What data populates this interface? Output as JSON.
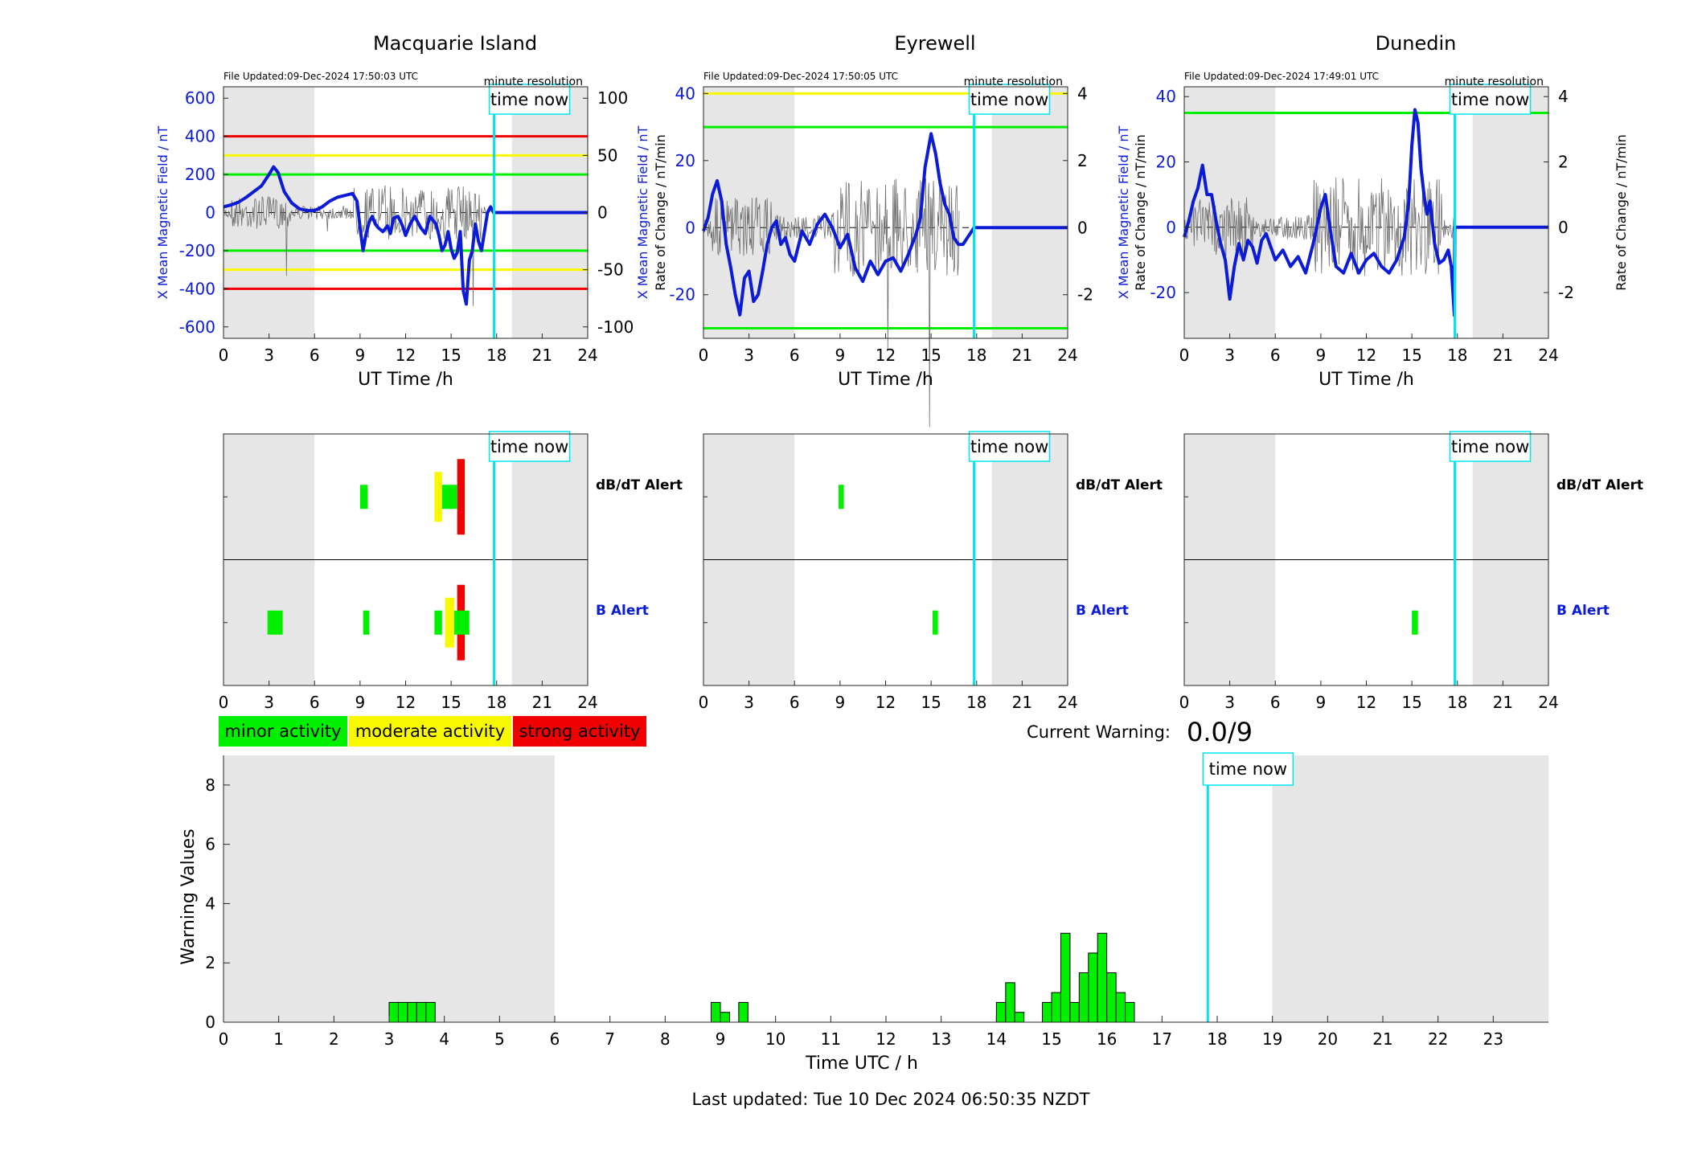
{
  "colors": {
    "field_line": "#0b1bd6",
    "roc_line": "#6e6e6e",
    "night_shade": "#e6e6e6",
    "time_now": "#00e5ee",
    "minor": "#00f000",
    "moderate": "#f8f800",
    "strong": "#f00000",
    "bar_fill": "#00f000"
  },
  "common": {
    "time_now_label": "time now",
    "minute_resolution": "minute resolution",
    "x_label": "UT Time /h",
    "x_ticks": [
      "0",
      "3",
      "6",
      "9",
      "12",
      "15",
      "18",
      "21",
      "24"
    ],
    "roc_label": "Rate of Change / nT/min",
    "field_label": "X Mean Magnetic Field / nT",
    "dbdt_alert": "dB/dT Alert",
    "b_alert": "B Alert",
    "time_now_hour": 17.83,
    "night_shades": [
      [
        0,
        6
      ],
      [
        19,
        24
      ]
    ]
  },
  "legend": {
    "minor": "minor activity",
    "moderate": "moderate activity",
    "strong": "strong activity"
  },
  "current_warning": {
    "label": "Current Warning:",
    "value": "0.0/9"
  },
  "last_updated": "Last updated: Tue 10 Dec 2024 06:50:35 NZDT",
  "chart_data": [
    {
      "type": "line",
      "title": "Macquarie Island",
      "file_updated": "File Updated:09-Dec-2024 17:50:03 UTC",
      "xlabel": "UT Time /h",
      "ylabel": "X Mean Magnetic Field / nT",
      "ylabel_right": "Rate of Change / nT/min",
      "xlim": [
        0,
        24
      ],
      "ylim": [
        -660,
        660
      ],
      "yticks": [
        -600,
        -400,
        -200,
        0,
        200,
        400,
        600
      ],
      "ylim_right": [
        -110,
        110
      ],
      "yticks_right": [
        -100,
        -50,
        0,
        50,
        100
      ],
      "thresholds": [
        {
          "value": 400,
          "color": "#f00000"
        },
        {
          "value": -400,
          "color": "#f00000"
        },
        {
          "value": 300,
          "color": "#f8f800"
        },
        {
          "value": -300,
          "color": "#f8f800"
        },
        {
          "value": 200,
          "color": "#00f000"
        },
        {
          "value": -200,
          "color": "#00f000"
        }
      ],
      "series": [
        {
          "x": [
            0,
            0.5,
            1,
            1.5,
            2,
            2.5,
            3,
            3.3,
            3.6,
            4,
            4.5,
            5,
            5.5,
            6,
            6.5,
            7,
            7.5,
            8,
            8.5,
            8.8,
            9,
            9.2,
            9.4,
            9.6,
            9.8,
            10,
            10.2,
            10.5,
            10.8,
            11,
            11.2,
            11.5,
            11.8,
            12,
            12.3,
            12.6,
            13,
            13.3,
            13.6,
            14,
            14.2,
            14.4,
            14.6,
            14.8,
            15,
            15.2,
            15.4,
            15.6,
            15.8,
            16,
            16.2,
            16.4,
            16.6,
            16.8,
            17,
            17.2,
            17.4,
            17.6,
            17.8,
            24
          ],
          "y": [
            30,
            40,
            55,
            80,
            110,
            140,
            200,
            240,
            210,
            110,
            50,
            20,
            10,
            10,
            30,
            60,
            80,
            90,
            100,
            60,
            -80,
            -200,
            -110,
            -50,
            -20,
            -60,
            -80,
            -100,
            -70,
            -110,
            -30,
            -20,
            -70,
            -120,
            -60,
            -20,
            -80,
            -110,
            -20,
            -60,
            -120,
            -200,
            -170,
            -100,
            -190,
            -240,
            -210,
            -100,
            -410,
            -480,
            -250,
            -200,
            -60,
            -150,
            -200,
            -100,
            0,
            30,
            0,
            0
          ]
        }
      ]
    },
    {
      "type": "line",
      "title": "Eyrewell",
      "file_updated": "File Updated:09-Dec-2024 17:50:05 UTC",
      "xlabel": "UT Time /h",
      "ylabel": "X Mean Magnetic Field / nT",
      "ylabel_right": "Rate of Change / nT/min",
      "xlim": [
        0,
        24
      ],
      "ylim": [
        -33,
        42
      ],
      "yticks": [
        -20,
        0,
        20,
        40
      ],
      "ylim_right": [
        -3.3,
        4.2
      ],
      "yticks_right": [
        -2,
        0,
        2,
        4
      ],
      "thresholds": [
        {
          "value": 40,
          "color": "#f8f800"
        },
        {
          "value": 30,
          "color": "#00f000"
        },
        {
          "value": -30,
          "color": "#00f000"
        }
      ],
      "series": [
        {
          "x": [
            0,
            0.3,
            0.6,
            0.9,
            1.2,
            1.5,
            1.8,
            2.1,
            2.4,
            2.7,
            3,
            3.3,
            3.6,
            3.9,
            4.2,
            4.5,
            4.8,
            5.1,
            5.4,
            5.7,
            6,
            6.5,
            7,
            7.5,
            8,
            8.5,
            9,
            9.5,
            10,
            10.5,
            11,
            11.5,
            12,
            12.5,
            13,
            13.5,
            14,
            14.3,
            14.6,
            15,
            15.3,
            15.6,
            15.9,
            16.2,
            16.5,
            16.8,
            17.1,
            17.83,
            24
          ],
          "y": [
            -1,
            3,
            10,
            14,
            8,
            -5,
            -12,
            -20,
            -26,
            -15,
            -13,
            -22,
            -20,
            -13,
            -5,
            0,
            2,
            -5,
            -3,
            -8,
            -10,
            -1,
            -5,
            1,
            4,
            0,
            -6,
            -2,
            -12,
            -16,
            -10,
            -14,
            -10,
            -9,
            -13,
            -8,
            -2,
            3,
            18,
            28,
            22,
            13,
            7,
            4,
            -3,
            -5,
            -5,
            0,
            0
          ]
        }
      ]
    },
    {
      "type": "line",
      "title": "Dunedin",
      "file_updated": "File Updated:09-Dec-2024 17:49:01 UTC",
      "xlabel": "UT Time /h",
      "ylabel": "X Mean Magnetic Field / nT",
      "ylabel_right": "Rate of Change / nT/min",
      "xlim": [
        0,
        24
      ],
      "ylim": [
        -34,
        43
      ],
      "yticks": [
        -20,
        0,
        20,
        40
      ],
      "ylim_right": [
        -3.4,
        4.3
      ],
      "yticks_right": [
        -2,
        0,
        2,
        4
      ],
      "thresholds": [
        {
          "value": 35,
          "color": "#00f000"
        }
      ],
      "series": [
        {
          "x": [
            0,
            0.3,
            0.6,
            0.9,
            1.2,
            1.5,
            1.8,
            2.1,
            2.4,
            2.7,
            3,
            3.3,
            3.6,
            3.9,
            4.2,
            4.5,
            4.8,
            5.1,
            5.4,
            5.7,
            6,
            6.5,
            7,
            7.5,
            8,
            8.5,
            9,
            9.3,
            9.6,
            10,
            10.5,
            11,
            11.5,
            12,
            12.5,
            13,
            13.5,
            14,
            14.5,
            14.8,
            15,
            15.2,
            15.4,
            15.6,
            15.8,
            16,
            16.2,
            16.5,
            16.8,
            17.1,
            17.4,
            17.6,
            17.8,
            17.83,
            24
          ],
          "y": [
            -3,
            2,
            8,
            12,
            19,
            10,
            10,
            2,
            -5,
            -10,
            -22,
            -12,
            -5,
            -10,
            -4,
            -6,
            -11,
            -4,
            -2,
            -6,
            -10,
            -7,
            -12,
            -9,
            -14,
            -5,
            6,
            10,
            0,
            -12,
            -14,
            -8,
            -14,
            -10,
            -8,
            -12,
            -14,
            -10,
            -3,
            8,
            25,
            36,
            32,
            18,
            10,
            4,
            8,
            -5,
            -11,
            -10,
            -7,
            -12,
            -27,
            0,
            0
          ]
        }
      ]
    },
    {
      "type": "bar",
      "xlabel": "Time UTC / h",
      "ylabel": "Warning Values",
      "xlim": [
        0,
        24
      ],
      "ylim": [
        0,
        9
      ],
      "yticks": [
        0,
        2,
        4,
        6,
        8
      ],
      "xticks": [
        "0",
        "1",
        "2",
        "3",
        "4",
        "5",
        "6",
        "7",
        "8",
        "9",
        "10",
        "11",
        "12",
        "13",
        "14",
        "15",
        "16",
        "17",
        "18",
        "19",
        "20",
        "21",
        "22",
        "23"
      ],
      "bar_width": 0.167,
      "x": [
        3.0,
        3.167,
        3.333,
        3.5,
        3.667,
        8.833,
        9.0,
        9.333,
        14.0,
        14.167,
        14.333,
        14.833,
        15.0,
        15.167,
        15.333,
        15.5,
        15.667,
        15.833,
        16.0,
        16.167,
        16.333
      ],
      "values": [
        0.667,
        0.667,
        0.667,
        0.667,
        0.667,
        0.667,
        0.333,
        0.667,
        0.667,
        1.333,
        0.333,
        0.667,
        1.0,
        3.0,
        0.667,
        1.667,
        2.333,
        3.0,
        1.667,
        1.0,
        0.667
      ]
    }
  ],
  "alerts": [
    {
      "station": "Macquarie Island",
      "dbdt": [
        {
          "start": 9.0,
          "end": 9.5,
          "level": "minor"
        },
        {
          "start": 13.9,
          "end": 14.4,
          "level": "moderate"
        },
        {
          "start": 14.4,
          "end": 15.4,
          "level": "minor"
        },
        {
          "start": 15.4,
          "end": 15.9,
          "level": "strong"
        }
      ],
      "b": [
        {
          "start": 2.9,
          "end": 3.9,
          "level": "minor"
        },
        {
          "start": 9.2,
          "end": 9.6,
          "level": "minor"
        },
        {
          "start": 13.9,
          "end": 14.4,
          "level": "minor"
        },
        {
          "start": 14.6,
          "end": 15.2,
          "level": "moderate"
        },
        {
          "start": 15.2,
          "end": 16.2,
          "level": "minor"
        },
        {
          "start": 15.4,
          "end": 15.9,
          "level": "strong"
        }
      ]
    },
    {
      "station": "Eyrewell",
      "dbdt": [
        {
          "start": 8.9,
          "end": 9.25,
          "level": "minor"
        }
      ],
      "b": [
        {
          "start": 15.1,
          "end": 15.45,
          "level": "minor"
        }
      ]
    },
    {
      "station": "Dunedin",
      "dbdt": [],
      "b": [
        {
          "start": 15.0,
          "end": 15.4,
          "level": "minor"
        }
      ]
    }
  ]
}
